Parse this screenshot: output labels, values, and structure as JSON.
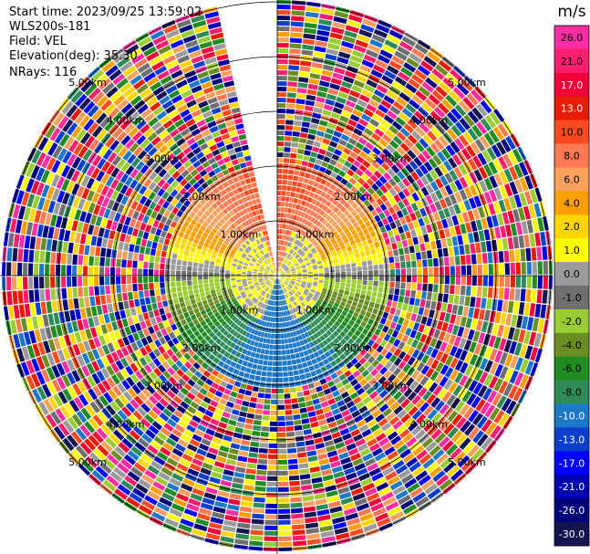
{
  "header": {
    "start_time": "Start time: 2023/09/25 13:59:02",
    "instrument": "WLS200s-181",
    "field": "Field: VEL",
    "elevation": "Elevation(deg): 35.30",
    "nrays": "NRays: 116"
  },
  "chart_data": {
    "type": "heatmap",
    "projection": "polar-ppi",
    "ring_labels": [
      "1.00km",
      "2.00km",
      "3.00km",
      "4.00km",
      "5.00km"
    ],
    "rings_km": [
      1,
      2,
      3,
      4,
      5
    ],
    "nrays": 116,
    "missing_sector_deg": [
      -13,
      0
    ],
    "colorbar": {
      "unit": "m/s",
      "tick_labels": [
        "26.0",
        "21.0",
        "17.0",
        "13.0",
        "10.0",
        "8.0",
        "6.0",
        "4.0",
        "2.0",
        "1.0",
        "0.0",
        "-1.0",
        "-2.0",
        "-4.0",
        "-6.0",
        "-8.0",
        "-10.0",
        "-13.0",
        "-17.0",
        "-21.0",
        "-26.0",
        "-30.0"
      ],
      "colors": [
        "#ff2ea3",
        "#ff1f6e",
        "#f2003a",
        "#e81c00",
        "#ff4b1f",
        "#ff7a52",
        "#f7a15c",
        "#ff9f00",
        "#ffd500",
        "#ffff00",
        "#9b9b9b",
        "#6f6f6f",
        "#9acd32",
        "#6b8e23",
        "#228b22",
        "#2e8b57",
        "#1e78c8",
        "#0b3ecd",
        "#0000ff",
        "#0000b0",
        "#00007a",
        "#141450"
      ]
    }
  }
}
